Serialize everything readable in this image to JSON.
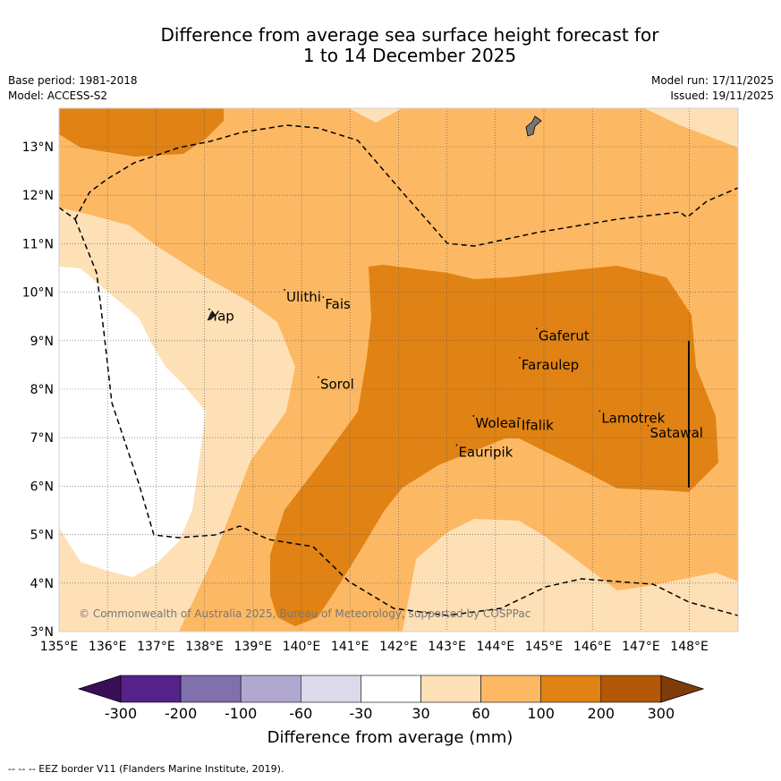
{
  "title": {
    "line1": "Difference from average sea surface height forecast for",
    "line2": "1 to 14 December 2025"
  },
  "meta_left": {
    "base_period": "Base period: 1981-2018",
    "model": "Model: ACCESS-S2"
  },
  "meta_right": {
    "model_run": "Model run: 17/11/2025",
    "issued": "Issued: 19/11/2025"
  },
  "map": {
    "lon_range": [
      135,
      149
    ],
    "lat_range": [
      3,
      13.8
    ],
    "lon_ticks": [
      "135°E",
      "136°E",
      "137°E",
      "138°E",
      "139°E",
      "140°E",
      "141°E",
      "142°E",
      "143°E",
      "144°E",
      "145°E",
      "146°E",
      "147°E",
      "148°E"
    ],
    "lat_ticks": [
      "3°N",
      "4°N",
      "5°N",
      "6°N",
      "7°N",
      "8°N",
      "9°N",
      "10°N",
      "11°N",
      "12°N",
      "13°N"
    ],
    "places": [
      {
        "name": "Yap",
        "lon": 138.1,
        "lat": 9.5
      },
      {
        "name": "Ulithi",
        "lon": 139.65,
        "lat": 9.9
      },
      {
        "name": "Fais",
        "lon": 140.45,
        "lat": 9.75
      },
      {
        "name": "Sorol",
        "lon": 140.35,
        "lat": 8.1
      },
      {
        "name": "Gaferut",
        "lon": 144.85,
        "lat": 9.1
      },
      {
        "name": "Faraulep",
        "lon": 144.5,
        "lat": 8.5
      },
      {
        "name": "Woleai",
        "lon": 143.55,
        "lat": 7.3
      },
      {
        "name": "Ifalik",
        "lon": 144.5,
        "lat": 7.25
      },
      {
        "name": "Eauripik",
        "lon": 143.2,
        "lat": 6.7
      },
      {
        "name": "Lamotrek",
        "lon": 146.15,
        "lat": 7.4
      },
      {
        "name": "Satawal",
        "lon": 147.15,
        "lat": 7.1
      }
    ],
    "copyright": "© Commonwealth of Australia 2025, Bureau of Meteorology, supported by COSPPac"
  },
  "legend": {
    "ticks": [
      "-300",
      "-200",
      "-100",
      "-60",
      "-30",
      "30",
      "60",
      "100",
      "200",
      "300"
    ],
    "label": "Difference from average (mm)",
    "colors": [
      "#3b0e58",
      "#542288",
      "#8070ac",
      "#b1a8d1",
      "#dadaeb",
      "#ffffff",
      "#fee0b6",
      "#fdb863",
      "#e08214",
      "#b35806",
      "#7f3b08"
    ]
  },
  "footnote": "--  --  -- EEZ border V11 (Flanders Marine Institute, 2019)."
}
